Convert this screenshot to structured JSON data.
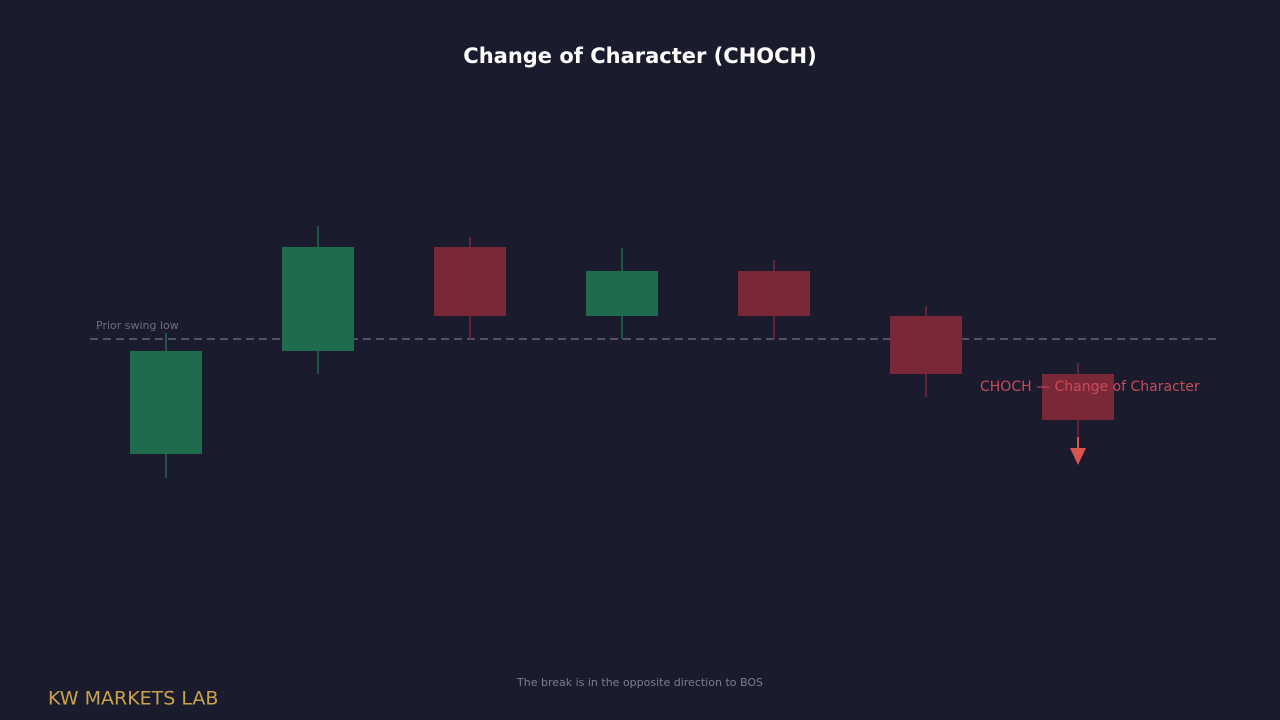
{
  "chart_data": {
    "type": "candlestick",
    "title": "Change of Character (CHOCH)",
    "open": [
      46,
      149,
      253,
      184,
      229,
      184,
      126
    ],
    "high": [
      167,
      274,
      263,
      252,
      240,
      194,
      137
    ],
    "low": [
      22,
      126,
      161,
      161,
      161,
      103,
      63
    ],
    "close": [
      149,
      253,
      184,
      229,
      184,
      126,
      80
    ],
    "up_color": "#1f6b4e",
    "down_color": "#7a2838",
    "ylim": [
      0,
      300
    ],
    "reference_line": {
      "value": 161,
      "label": "Prior swing low"
    },
    "annotation": "CHOCH — Change of Character",
    "footnote": "The break is in the opposite direction to BOS",
    "brand": "KW MARKETS LAB"
  }
}
